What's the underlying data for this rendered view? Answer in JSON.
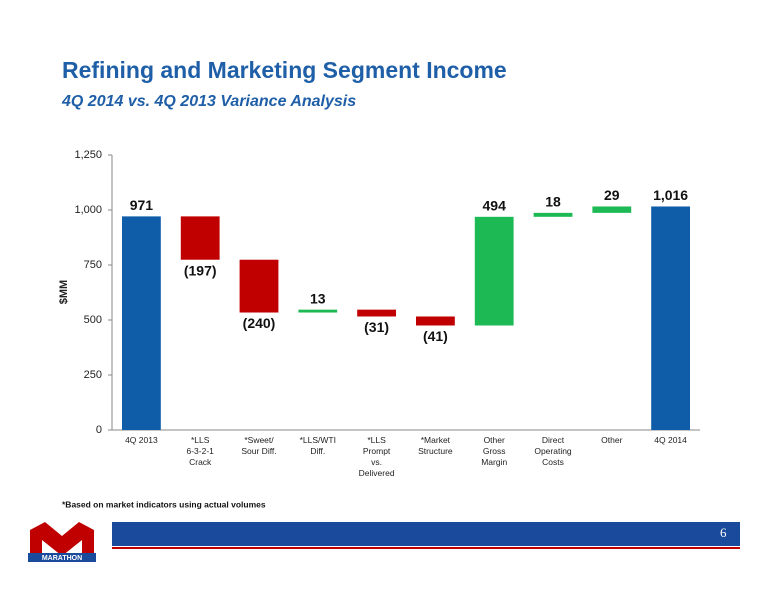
{
  "chart_data": {
    "type": "waterfall",
    "title": "Refining and Marketing Segment Income",
    "subtitle": "4Q 2014 vs. 4Q 2013 Variance Analysis",
    "y_label": "$MM",
    "footnote": "*Based on market indicators using actual volumes",
    "categories": [
      [
        "4Q 2013"
      ],
      [
        "*LLS",
        "6-3-2-1",
        "Crack"
      ],
      [
        "*Sweet/",
        "Sour Diff."
      ],
      [
        "*LLS/WTI",
        "Diff."
      ],
      [
        "*LLS",
        "Prompt",
        "vs.",
        "Delivered"
      ],
      [
        "*Market",
        "Structure"
      ],
      [
        "Other",
        "Gross",
        "Margin"
      ],
      [
        "Direct",
        "Operating",
        "Costs"
      ],
      [
        "Other"
      ],
      [
        "4Q 2014"
      ]
    ],
    "measure": [
      "total",
      "relative",
      "relative",
      "relative",
      "relative",
      "relative",
      "relative",
      "relative",
      "relative",
      "total"
    ],
    "values": [
      971,
      -197,
      -240,
      13,
      -31,
      -41,
      494,
      18,
      29,
      1016
    ],
    "value_labels": [
      "971",
      "(197)",
      "(240)",
      "13",
      "(31)",
      "(41)",
      "494",
      "18",
      "29",
      "1,016"
    ],
    "colors": {
      "total": "#0f5ca8",
      "increase": "#1db954",
      "decrease": "#c00000"
    },
    "ylim": [
      0,
      1250
    ],
    "yticks": [
      0,
      250,
      500,
      750,
      {
        "value": 1000,
        "label": "1,000"
      },
      {
        "value": 1250,
        "label": "1,250"
      }
    ]
  },
  "page_number": "6",
  "logo_text": "MARATHON"
}
